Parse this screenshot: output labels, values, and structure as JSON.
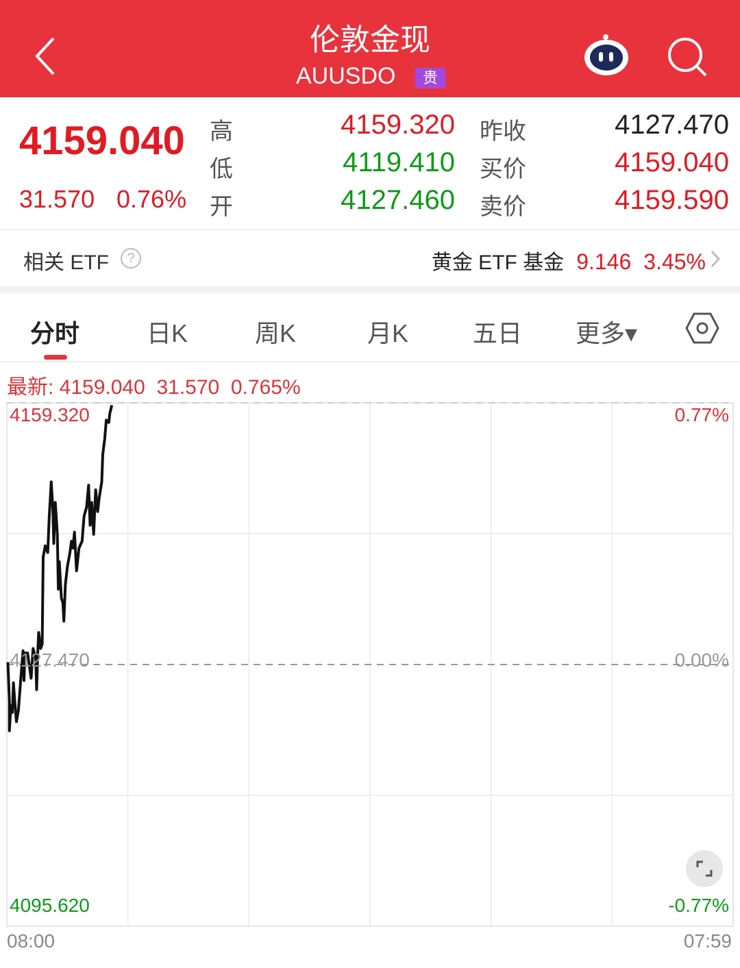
{
  "header": {
    "title": "伦敦金现",
    "code": "AUUSDO",
    "badge": "贵",
    "icons": [
      "back-chevron-icon",
      "robot-assistant-icon",
      "search-icon"
    ]
  },
  "quote": {
    "last": "4159.040",
    "change": "31.570",
    "change_pct": "0.76%",
    "high_label": "高",
    "high": "4159.320",
    "low_label": "低",
    "low": "4119.410",
    "open_label": "开",
    "open": "4127.460",
    "prev_close_label": "昨收",
    "prev_close": "4127.470",
    "bid_label": "买价",
    "bid": "4159.040",
    "ask_label": "卖价",
    "ask": "4159.590"
  },
  "etf": {
    "label": "相关 ETF",
    "help_icon": "question-circle-icon",
    "name": "黄金 ETF 基金",
    "price": "9.146",
    "pct": "3.45%"
  },
  "tabs": [
    {
      "label": "分时",
      "active": true
    },
    {
      "label": "日K"
    },
    {
      "label": "周K"
    },
    {
      "label": "月K"
    },
    {
      "label": "五日"
    },
    {
      "label": "更多▾"
    }
  ],
  "settings_icon": "hexagon-settings-icon",
  "info_line": "最新: 4159.040  31.570  0.765%",
  "colors": {
    "header": "#e8333d",
    "up": "#e01b23",
    "down": "#0d9a17"
  },
  "chart_data": {
    "type": "line",
    "ylim": [
      4095.62,
      4159.32
    ],
    "xrange": [
      "08:00",
      "07:59"
    ],
    "y_labels_left": [
      "4159.320",
      "4127.470",
      "4095.620"
    ],
    "y_labels_right": [
      "0.77%",
      "0.00%",
      "-0.77%"
    ],
    "x_labels": [
      "08:00",
      "07:59"
    ],
    "reference": 4127.47,
    "grid": true,
    "points": [
      [
        "08:02",
        4127.75
      ],
      [
        "08:05",
        4123.02
      ],
      [
        "08:05",
        4119.41
      ],
      [
        "08:08",
        4122.47
      ],
      [
        "08:11",
        4121.63
      ],
      [
        "08:13",
        4125.25
      ],
      [
        "08:16",
        4122.74
      ],
      [
        "08:19",
        4120.52
      ],
      [
        "08:23",
        4121.91
      ],
      [
        "08:27",
        4125.25
      ],
      [
        "08:32",
        4129.14
      ],
      [
        "08:34",
        4125.52
      ],
      [
        "08:36",
        4128.86
      ],
      [
        "08:41",
        4128.86
      ],
      [
        "08:48",
        4125.8
      ],
      [
        "08:52",
        4129.42
      ],
      [
        "08:57",
        4128.3
      ],
      [
        "08:59",
        4124.41
      ],
      [
        "09:01",
        4128.58
      ],
      [
        "09:03",
        4131.36
      ],
      [
        "09:07",
        4129.42
      ],
      [
        "09:10",
        4129.97
      ],
      [
        "09:12",
        4140.53
      ],
      [
        "09:16",
        4141.92
      ],
      [
        "09:21",
        4141.09
      ],
      [
        "09:24",
        4145.53
      ],
      [
        "09:28",
        4149.7
      ],
      [
        "09:31",
        4146.65
      ],
      [
        "09:33",
        4142.2
      ],
      [
        "09:36",
        4147.2
      ],
      [
        "09:40",
        4143.31
      ],
      [
        "09:42",
        4136.64
      ],
      [
        "09:44",
        4139.98
      ],
      [
        "09:48",
        4135.53
      ],
      [
        "09:51",
        4134.97
      ],
      [
        "09:53",
        4132.75
      ],
      [
        "09:56",
        4137.2
      ],
      [
        "10:00",
        4139.42
      ],
      [
        "10:05",
        4141.09
      ],
      [
        "10:08",
        4142.48
      ],
      [
        "10:11",
        4141.64
      ],
      [
        "10:14",
        4143.59
      ],
      [
        "10:18",
        4138.87
      ],
      [
        "10:23",
        4141.64
      ],
      [
        "10:29",
        4142.48
      ],
      [
        "10:33",
        4145.53
      ],
      [
        "10:38",
        4146.65
      ],
      [
        "10:42",
        4149.29
      ],
      [
        "10:45",
        4144.42
      ],
      [
        "10:48",
        4147.2
      ],
      [
        "10:52",
        4143.31
      ],
      [
        "10:56",
        4148.73
      ],
      [
        "11:00",
        4146.09
      ],
      [
        "11:03",
        4147.76
      ],
      [
        "11:08",
        4149.7
      ],
      [
        "11:10",
        4153.04
      ],
      [
        "11:14",
        4154.98
      ],
      [
        "11:17",
        4157.21
      ],
      [
        "11:22",
        4156.93
      ],
      [
        "11:24",
        4158.04
      ],
      [
        "11:28",
        4159.04
      ]
    ]
  }
}
